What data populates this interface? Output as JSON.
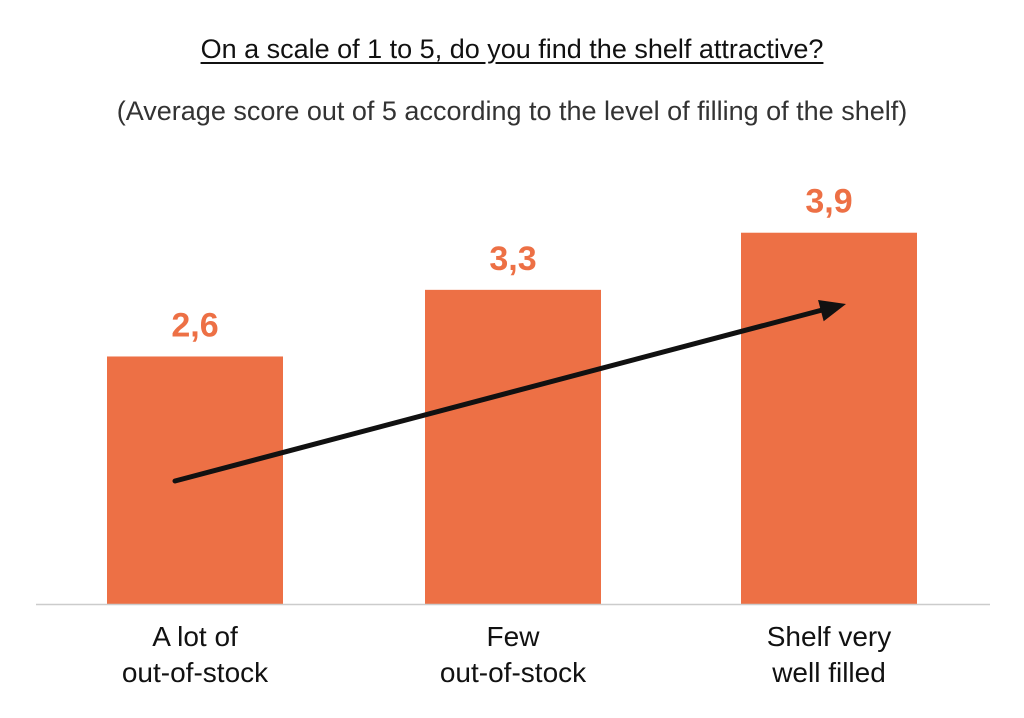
{
  "chart_data": {
    "type": "bar",
    "title": "On a scale of 1 to 5, do you find the shelf attractive?",
    "subtitle": "(Average score out of 5 according to the level of filling of the shelf)",
    "categories": [
      [
        "A lot of",
        "out-of-stock"
      ],
      [
        "Few",
        "out-of-stock"
      ],
      [
        "Shelf very",
        "well filled"
      ]
    ],
    "values": [
      2.6,
      3.3,
      3.9
    ],
    "value_labels": [
      "2,6",
      "3,3",
      "3,9"
    ],
    "ylim": [
      0,
      5
    ],
    "grid": false,
    "legend": "none",
    "annotations": [
      "upward trend arrow across bars"
    ],
    "colors": {
      "bar": "#ED7045",
      "value_label": "#ED7045",
      "arrow": "#111111",
      "axis": "#cccccc",
      "tick_label": "#111111"
    }
  }
}
